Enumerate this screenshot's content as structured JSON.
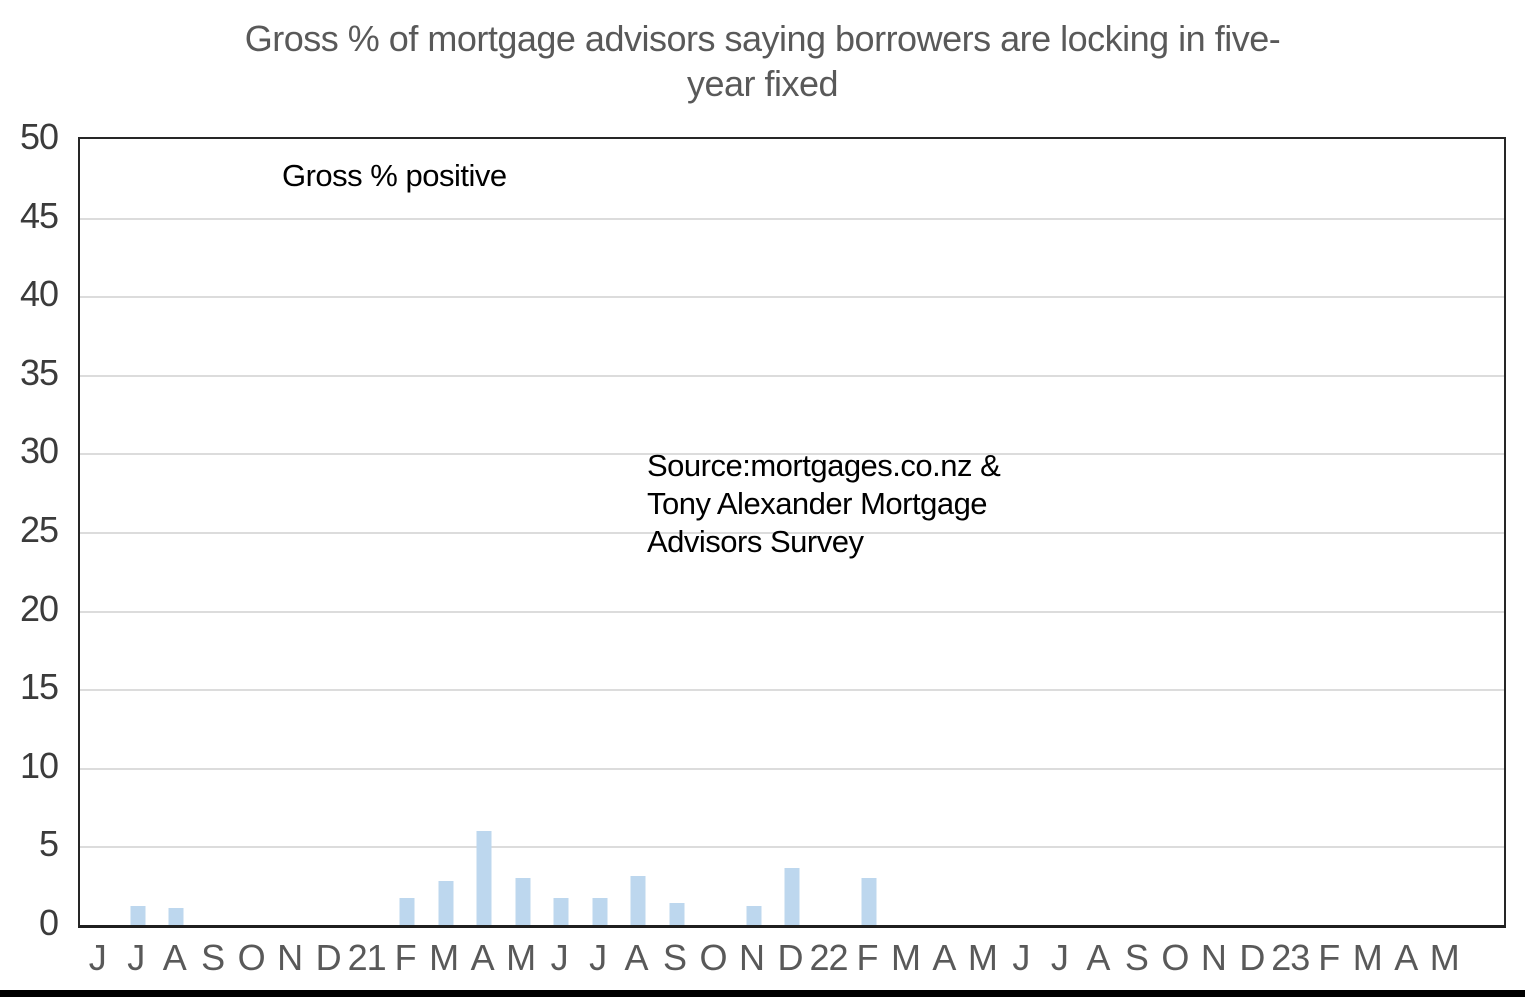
{
  "title": {
    "line1": "Gross % of mortgage advisors saying borrowers are locking in five-",
    "line2": "year fixed"
  },
  "annotations": {
    "plot_label": "Gross % positive",
    "source_line1": "Source:mortgages.co.nz &",
    "source_line2": "Tony Alexander Mortgage",
    "source_line3": "Advisors Survey"
  },
  "colors": {
    "bar": "#BDD7EE",
    "gridline": "#DCDCDC",
    "plot_border": "#262626",
    "title_text": "#595959",
    "axis_label_text": "#3B3B3B",
    "annotation_text": "#000000",
    "bottom_strip": "#000000"
  },
  "chart_data": {
    "type": "bar",
    "title": "Gross % of mortgage advisors saying borrowers are locking in five-year fixed",
    "inner_label": "Gross % positive",
    "source_note": "Source:mortgages.co.nz & Tony Alexander Mortgage Advisors Survey",
    "xlabel": "",
    "ylabel": "",
    "ylim": [
      0,
      50
    ],
    "yticks": [
      0,
      5,
      10,
      15,
      20,
      25,
      30,
      35,
      40,
      45,
      50
    ],
    "grid": true,
    "legend": false,
    "categories": [
      "J",
      "J",
      "A",
      "S",
      "O",
      "N",
      "D",
      "21",
      "F",
      "M",
      "A",
      "M",
      "J",
      "J",
      "A",
      "S",
      "O",
      "N",
      "D",
      "22",
      "F",
      "M",
      "A",
      "M",
      "J",
      "J",
      "A",
      "S",
      "O",
      "N",
      "D",
      "23",
      "F",
      "M",
      "A",
      "M"
    ],
    "category_meaning": "Months Jun 2020 through May 2023; 21/22/23 mark each January",
    "values": [
      0,
      1.2,
      1.1,
      0,
      0,
      0,
      0,
      0,
      1.7,
      2.8,
      6.0,
      3.0,
      1.7,
      1.7,
      3.1,
      1.4,
      0,
      1.2,
      3.6,
      0,
      3.0,
      0,
      0,
      0,
      0,
      0,
      0,
      0,
      0,
      0,
      0,
      0,
      0,
      0,
      0,
      0
    ]
  }
}
